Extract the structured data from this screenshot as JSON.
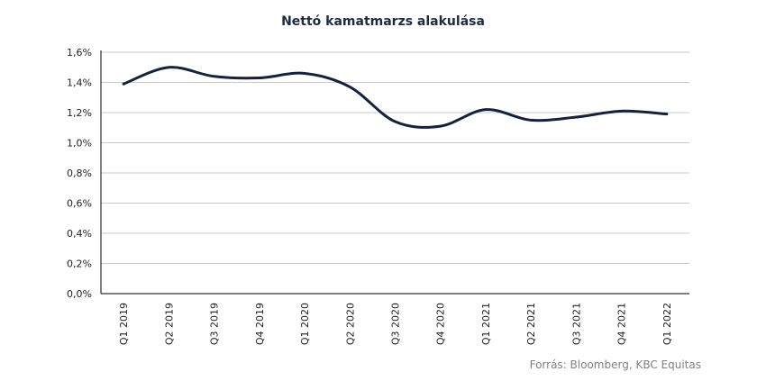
{
  "chart_data": {
    "type": "line",
    "title": "Nettó kamatmarzs alakulása",
    "xlabel": "",
    "ylabel": "",
    "categories": [
      "Q1 2019",
      "Q2 2019",
      "Q3 2019",
      "Q4 2019",
      "Q1 2020",
      "Q2 2020",
      "Q3 2020",
      "Q4 2020",
      "Q1 2021",
      "Q2 2021",
      "Q3 2021",
      "Q4 2021",
      "Q1 2022"
    ],
    "series": [
      {
        "values": [
          1.39,
          1.5,
          1.44,
          1.43,
          1.46,
          1.37,
          1.14,
          1.11,
          1.22,
          1.15,
          1.17,
          1.21,
          1.19
        ]
      }
    ],
    "ylim": [
      0,
      1.6
    ],
    "yticks": [
      "0,0%",
      "0,2%",
      "0,4%",
      "0,6%",
      "0,8%",
      "1,0%",
      "1,2%",
      "1,4%",
      "1,6%"
    ],
    "grid": true,
    "smooth": true,
    "line_color": "#14223f",
    "grid_color": "#c8c8c8"
  },
  "source": "Forrás: Bloomberg,  KBC Equitas"
}
